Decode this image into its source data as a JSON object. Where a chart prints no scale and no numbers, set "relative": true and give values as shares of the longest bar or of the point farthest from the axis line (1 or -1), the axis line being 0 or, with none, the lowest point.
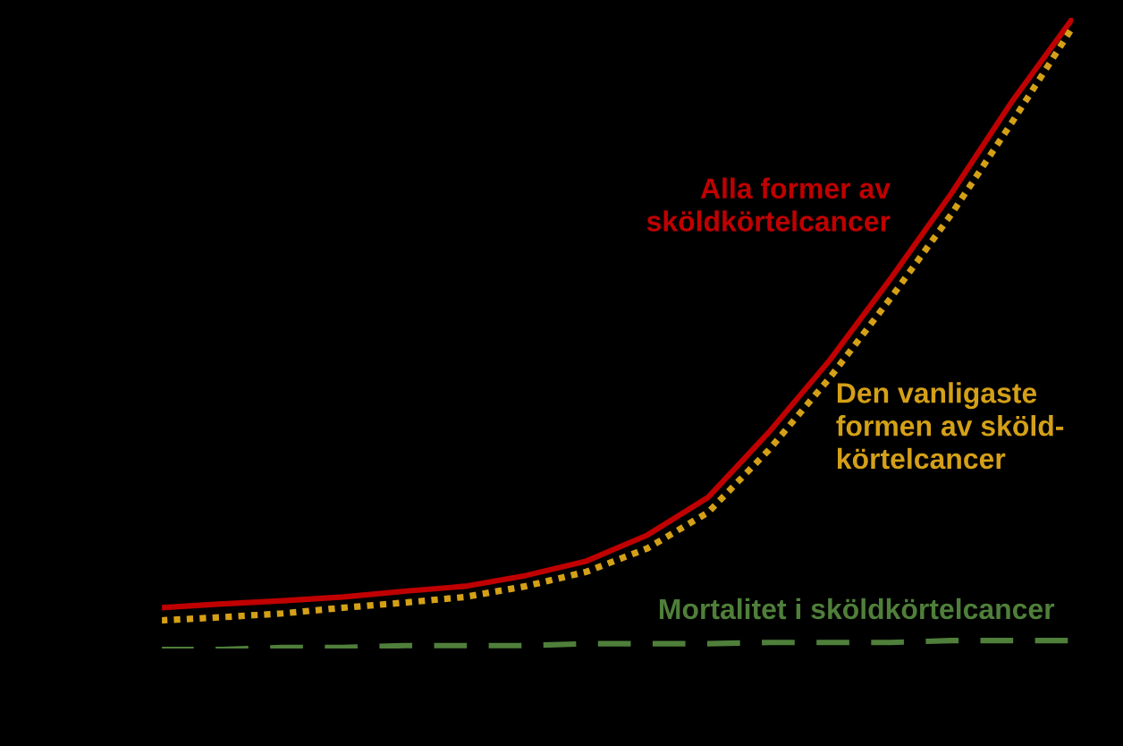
{
  "chart_data": {
    "type": "line",
    "relative": true,
    "legend": false,
    "categories": [
      null,
      null,
      null,
      null,
      null,
      null,
      null,
      null,
      null,
      null,
      null,
      null,
      null,
      null,
      null,
      null
    ],
    "series": [
      {
        "name": "Alla former av\nsköldkörtelcancer",
        "color": "#c00000",
        "line_style": "solid",
        "values": [
          0.066,
          0.072,
          0.077,
          0.083,
          0.092,
          0.1,
          0.117,
          0.14,
          0.181,
          0.241,
          0.344,
          0.458,
          0.587,
          0.722,
          0.868,
          1.0
        ]
      },
      {
        "name": "Den vanligaste\nformen av sköld-\nkörtelcancer",
        "color": "#d4a017",
        "line_style": "dotted",
        "values": [
          0.046,
          0.051,
          0.057,
          0.066,
          0.074,
          0.083,
          0.1,
          0.123,
          0.16,
          0.217,
          0.316,
          0.43,
          0.556,
          0.689,
          0.835,
          0.986
        ]
      },
      {
        "name": "Mortalitet i sköldkörtelcancer",
        "color": "#4f7f3a",
        "line_style": "dashed",
        "values": [
          0,
          0,
          0.003,
          0.003,
          0.006,
          0.006,
          0.006,
          0.009,
          0.009,
          0.009,
          0.011,
          0.011,
          0.011,
          0.014,
          0.014,
          0.014
        ]
      }
    ]
  }
}
